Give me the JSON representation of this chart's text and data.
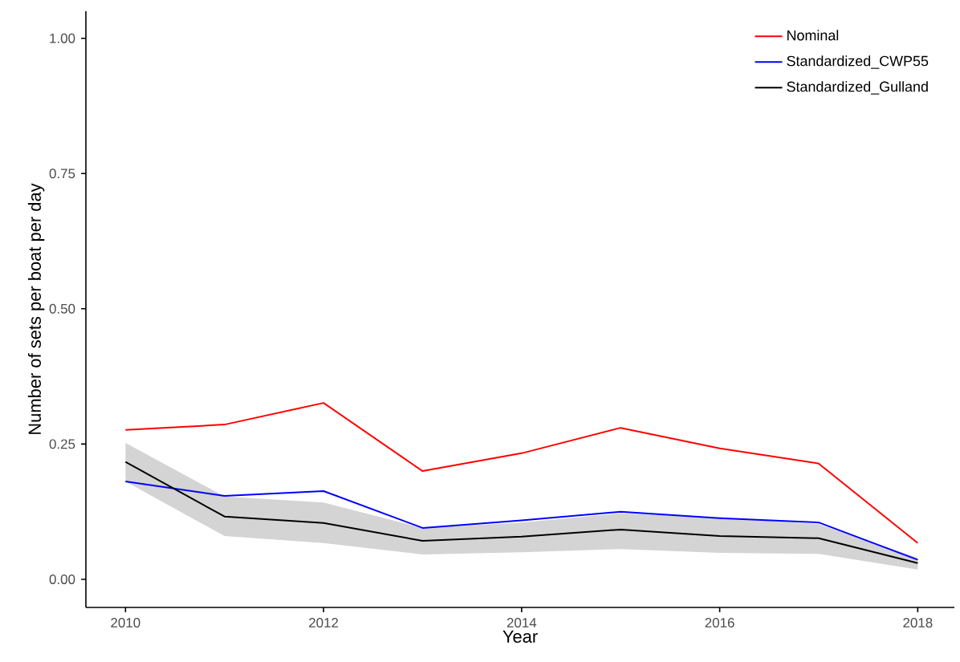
{
  "chart_data": {
    "type": "line",
    "xlabel": "Year",
    "ylabel": "Number of sets per boat per day",
    "x": [
      2010,
      2011,
      2012,
      2013,
      2014,
      2015,
      2016,
      2017,
      2018
    ],
    "series": [
      {
        "name": "Nominal",
        "color": "#ff0000",
        "values": [
          0.276,
          0.286,
          0.326,
          0.2,
          0.233,
          0.28,
          0.242,
          0.214,
          0.067
        ]
      },
      {
        "name": "Standardized_CWP55",
        "color": "#0000ff",
        "values": [
          0.181,
          0.154,
          0.163,
          0.095,
          0.109,
          0.125,
          0.113,
          0.105,
          0.036
        ]
      },
      {
        "name": "Standardized_Gulland",
        "color": "#000000",
        "values": [
          0.217,
          0.116,
          0.104,
          0.071,
          0.079,
          0.092,
          0.08,
          0.076,
          0.03
        ],
        "lower": [
          0.181,
          0.08,
          0.067,
          0.046,
          0.05,
          0.056,
          0.049,
          0.047,
          0.018
        ],
        "upper": [
          0.252,
          0.153,
          0.142,
          0.095,
          0.105,
          0.122,
          0.114,
          0.102,
          0.04
        ]
      }
    ],
    "xlim": [
      2009.6,
      2018.37
    ],
    "ylim": [
      -0.052,
      1.05
    ],
    "xticks": [
      2010,
      2012,
      2014,
      2016,
      2018
    ],
    "yticks": [
      {
        "value": 0,
        "label": "0.00"
      },
      {
        "value": 0.25,
        "label": "0.25"
      },
      {
        "value": 0.5,
        "label": "0.50"
      },
      {
        "value": 0.75,
        "label": "0.75"
      },
      {
        "value": 1,
        "label": "1.00"
      }
    ],
    "legend": "top right",
    "grid": false,
    "marker": "none",
    "line_style": "solid"
  }
}
